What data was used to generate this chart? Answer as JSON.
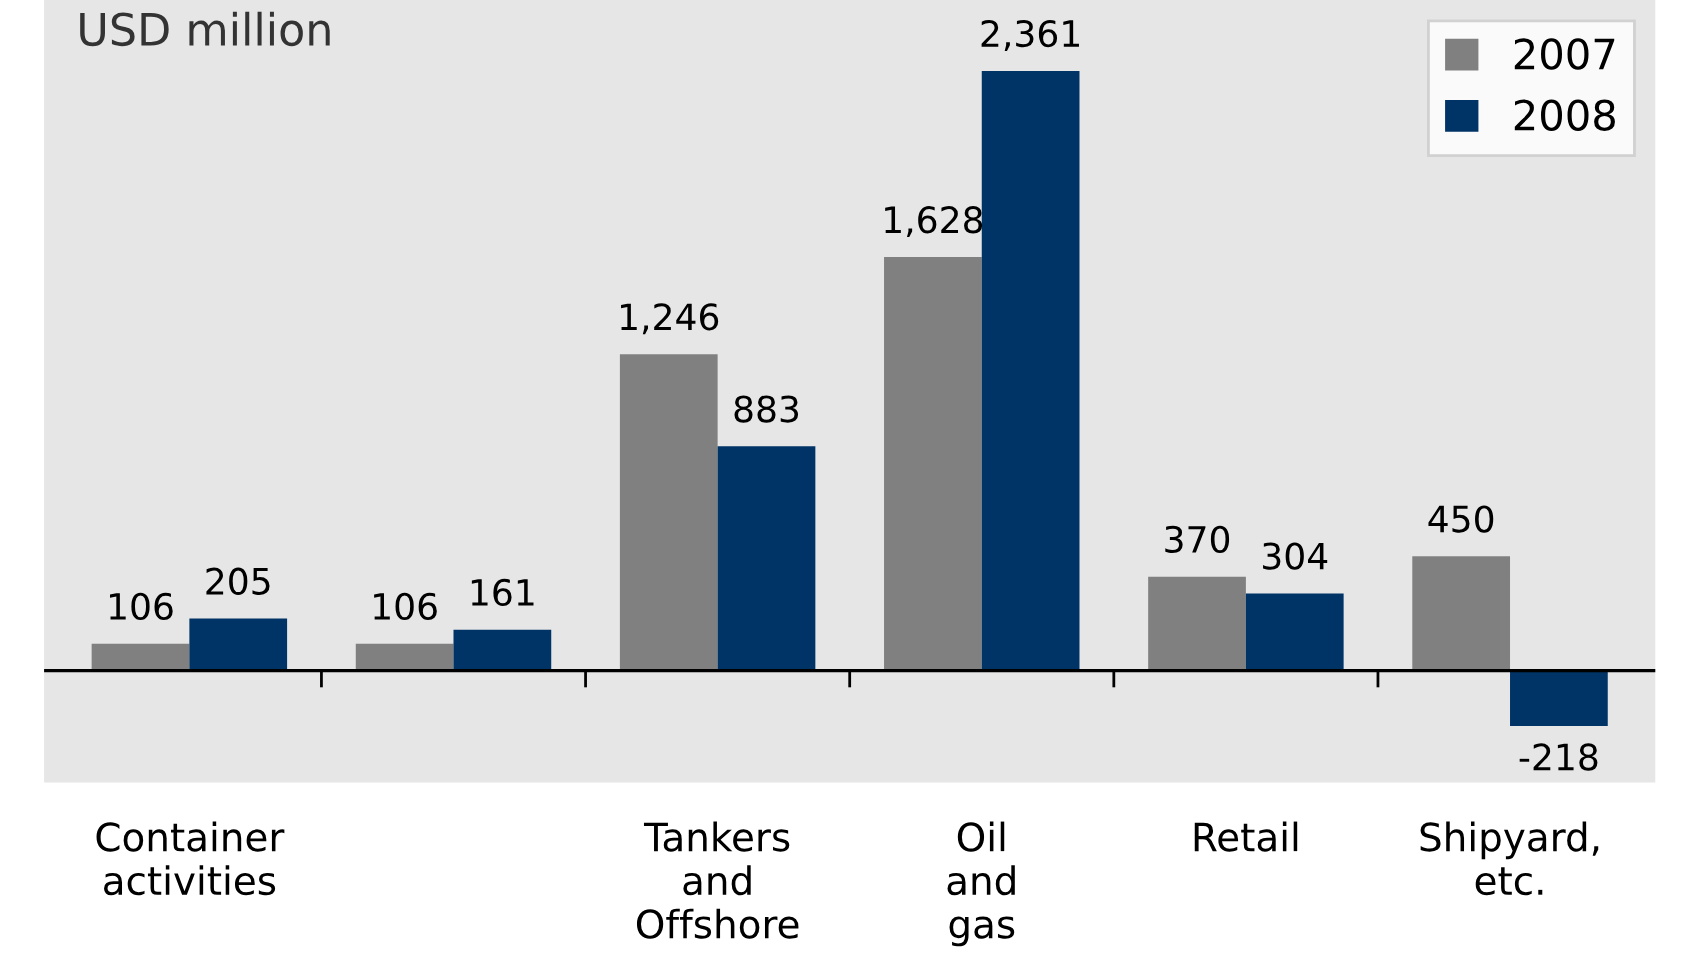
{
  "chart_data": {
    "type": "bar",
    "title": "USD million",
    "categories": [
      "Container activities",
      null,
      "Tankers and Offshore",
      "Oil and gas",
      "Retail",
      "Shipyard, etc."
    ],
    "series": [
      {
        "name": "2007",
        "color": "#808080",
        "values": [
          106,
          106,
          1246,
          1628,
          370,
          450
        ],
        "value_labels": [
          "106",
          "106",
          "1,246",
          "1,628",
          "370",
          "450"
        ]
      },
      {
        "name": "2008",
        "color": "#003366",
        "values": [
          205,
          161,
          883,
          2361,
          304,
          -218
        ],
        "value_labels": [
          "205",
          "161",
          "883",
          "2,361",
          "304",
          "-218"
        ]
      }
    ],
    "ylim": [
      -440,
      2640
    ],
    "tick_labels": "x",
    "legend": "top right"
  }
}
